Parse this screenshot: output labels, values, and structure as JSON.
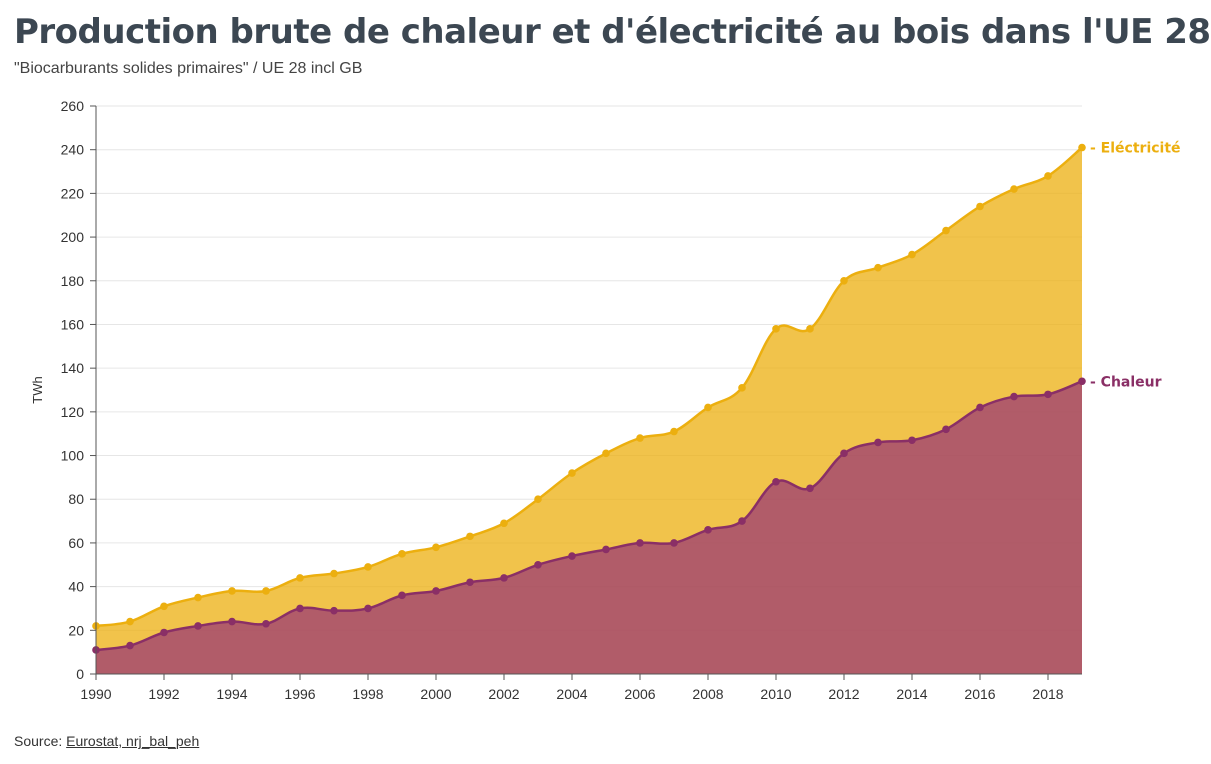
{
  "title": "Production brute de chaleur et d'électricité au bois dans l'UE 28",
  "subtitle": "\"Biocarburants solides primaires\" / UE 28 incl GB",
  "source": {
    "prefix": "Source: ",
    "link_text": "Eurostat, nrj_bal_peh"
  },
  "colors": {
    "electricite": "#ecaf0f",
    "chaleur": "#9b3a73"
  },
  "chart_data": {
    "type": "area",
    "stacked": true,
    "ylabel": "TWh",
    "ylim": [
      0,
      260
    ],
    "yticks": [
      0,
      20,
      40,
      60,
      80,
      100,
      120,
      140,
      160,
      180,
      200,
      220,
      240,
      260
    ],
    "xticks": [
      1990,
      1992,
      1994,
      1996,
      1998,
      2000,
      2002,
      2004,
      2006,
      2008,
      2010,
      2012,
      2014,
      2016,
      2018
    ],
    "xlim": [
      1990,
      2019
    ],
    "grid": true,
    "legend": "direct labels at line ends",
    "x": [
      1990,
      1991,
      1992,
      1993,
      1994,
      1995,
      1996,
      1997,
      1998,
      1999,
      2000,
      2001,
      2002,
      2003,
      2004,
      2005,
      2006,
      2007,
      2008,
      2009,
      2010,
      2011,
      2012,
      2013,
      2014,
      2015,
      2016,
      2017,
      2018,
      2019
    ],
    "series": [
      {
        "name": "Chaleur",
        "values": [
          11,
          13,
          19,
          22,
          24,
          23,
          30,
          29,
          30,
          36,
          38,
          42,
          44,
          50,
          54,
          57,
          60,
          60,
          66,
          70,
          88,
          85,
          101,
          106,
          107,
          112,
          122,
          127,
          128,
          134
        ]
      },
      {
        "name": "Eléctricité",
        "cumulative_values": [
          22,
          24,
          31,
          35,
          38,
          38,
          44,
          46,
          49,
          55,
          58,
          63,
          69,
          80,
          92,
          101,
          108,
          111,
          122,
          131,
          158,
          158,
          180,
          186,
          192,
          203,
          214,
          222,
          228,
          241
        ]
      }
    ]
  }
}
